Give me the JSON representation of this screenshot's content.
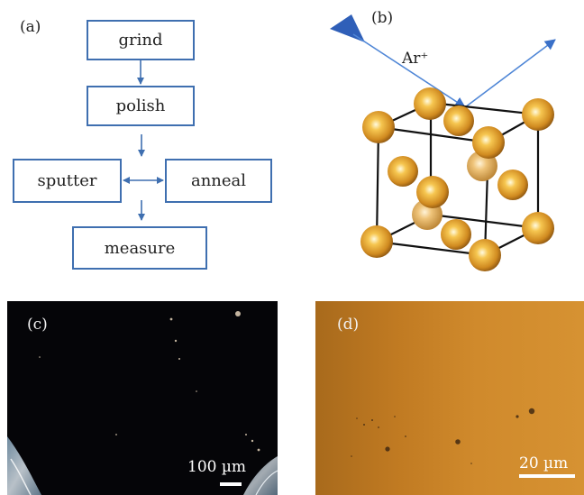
{
  "panel_a": {
    "label": "(a)",
    "steps": {
      "grind": "grind",
      "polish": "polish",
      "sputter": "sputter",
      "anneal": "anneal",
      "measure": "measure"
    }
  },
  "panel_b": {
    "label": "(b)",
    "ion_label": "Ar⁺",
    "atom_color": "#e0a030",
    "beam_color": "#3a70c8",
    "gun_color": "#2f5fb8"
  },
  "panel_c": {
    "label": "(c)",
    "scale_label": "100 µm",
    "background_color": "#050508"
  },
  "panel_d": {
    "label": "(d)",
    "scale_label": "20 µm",
    "background_color": "#c8801e"
  }
}
